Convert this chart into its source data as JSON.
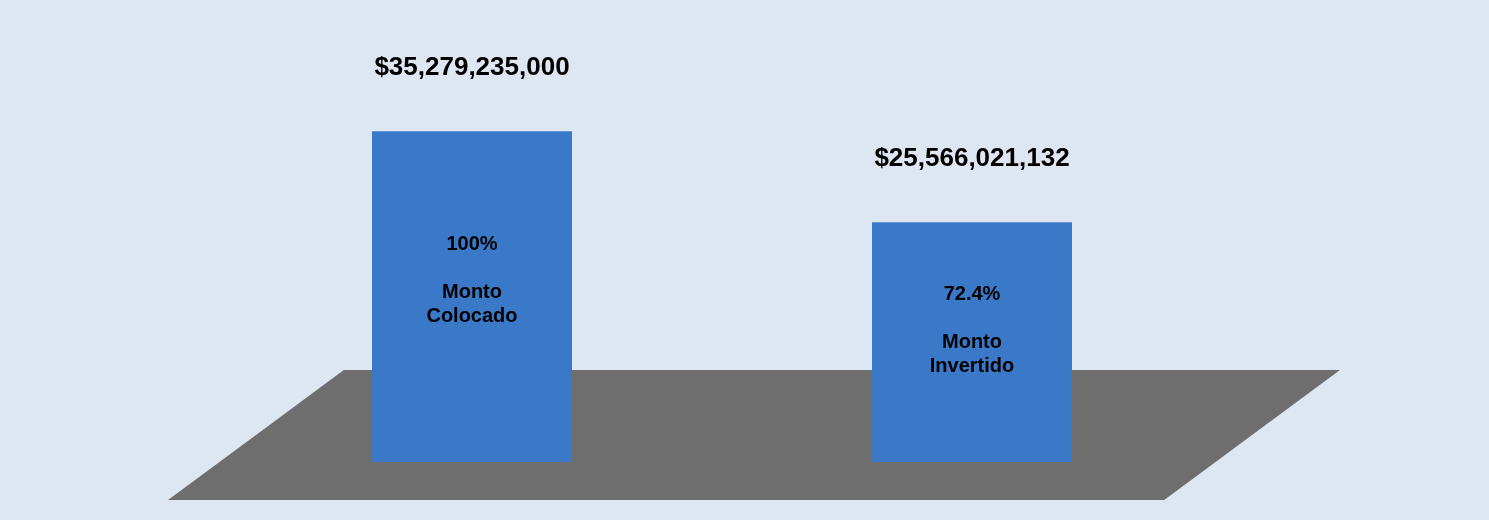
{
  "chart_data": {
    "type": "bar",
    "categories": [
      "Monto Colocado",
      "Monto Invertido"
    ],
    "values": [
      35279235000,
      25566021132
    ],
    "color": "#3a78c8",
    "value_labels": [
      "$35,279,235,000",
      "$25,566,021,132"
    ],
    "annotations": [
      "100%",
      "72.4%"
    ]
  }
}
